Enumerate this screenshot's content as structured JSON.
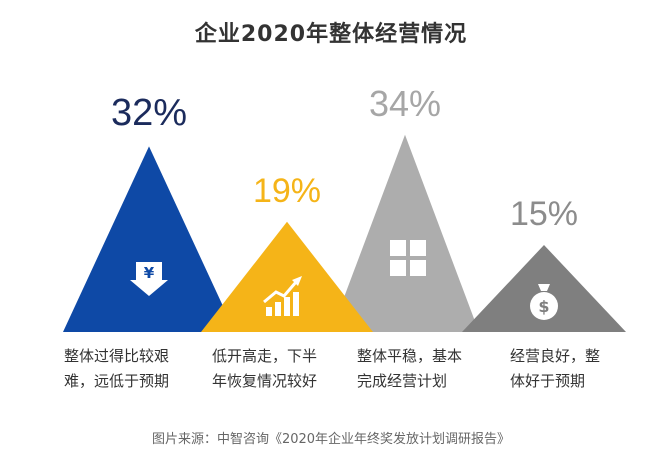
{
  "chart_data": {
    "type": "area",
    "title": "企业2020年整体经营情况",
    "categories": [
      "整体过得比较艰难，远低于预期",
      "低开高走，下半年恢复情况较好",
      "整体平稳，基本完成经营计划",
      "经营良好，整体好于预期"
    ],
    "series": [
      {
        "category": "整体过得比较艰难，远低于预期",
        "label": "32%",
        "value": 32,
        "color": "#0E49A6",
        "label_color": "#1B2B5C",
        "icon": "yen-down-arrow-icon",
        "desc": "整体过得比较艰\n难，远低于预期"
      },
      {
        "category": "低开高走，下半年恢复情况较好",
        "label": "19%",
        "value": 19,
        "color": "#F5B418",
        "label_color": "#F5B418",
        "icon": "rising-bar-chart-icon",
        "desc": "低开高走，下半\n年恢复情况较好"
      },
      {
        "category": "整体平稳，基本完成经营计划",
        "label": "34%",
        "value": 34,
        "color": "#ADADAD",
        "label_color": "#A6A6A6",
        "icon": "window-grid-icon",
        "desc": "整体平稳，基本\n完成经营计划"
      },
      {
        "category": "经营良好，整体好于预期",
        "label": "15%",
        "value": 15,
        "color": "#7F7F7F",
        "label_color": "#8C8C8C",
        "icon": "money-bag-icon",
        "desc": "经营良好，整\n体好于预期"
      }
    ]
  },
  "source": "图片来源：中智咨询《2020年企业年终奖发放计划调研报告》"
}
